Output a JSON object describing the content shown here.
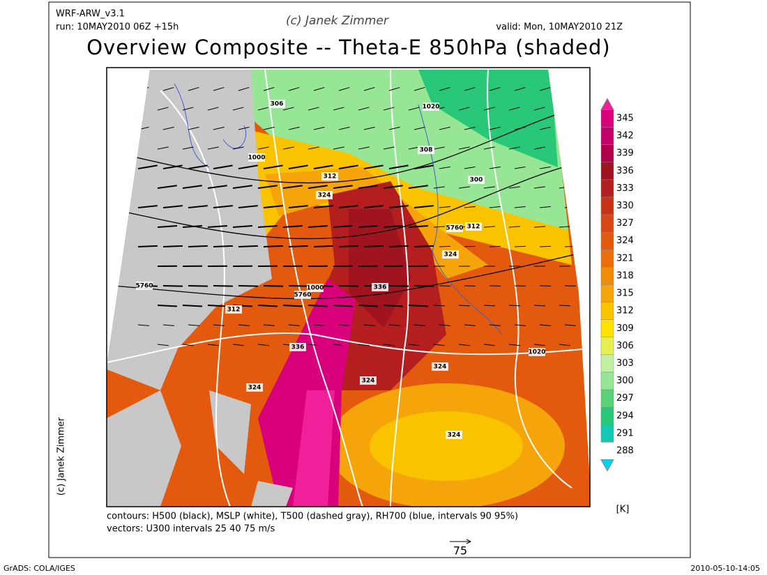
{
  "header": {
    "model": "WRF-ARW_v3.1",
    "run": "run: 10MAY2010 06Z +15h",
    "copyright": "(c) Janek Zimmer",
    "valid": "valid: Mon, 10MAY2010 21Z",
    "title": "Overview Composite -- Theta-E 850hPa (shaded)"
  },
  "colorbar": {
    "labels": [
      345,
      342,
      339,
      336,
      333,
      330,
      327,
      324,
      321,
      318,
      315,
      312,
      309,
      306,
      303,
      300,
      297,
      294,
      291,
      288
    ],
    "colors": [
      "#f0209a",
      "#d9007c",
      "#c4006a",
      "#b0004a",
      "#a01420",
      "#b41e1e",
      "#c83214",
      "#d74614",
      "#e35a0f",
      "#ec6e0a",
      "#f08c0a",
      "#f5a50a",
      "#fac300",
      "#ffe100",
      "#e6f050",
      "#c3f0a0",
      "#96e696",
      "#5ad278",
      "#28c878",
      "#14c8b4",
      "#00d2f0"
    ],
    "unit": "[K]"
  },
  "map_labels": [
    "1020",
    "1020",
    "1000",
    "1000",
    "5760",
    "5760",
    "5760",
    "312",
    "312",
    "312",
    "324",
    "324",
    "324",
    "324",
    "324",
    "324",
    "336",
    "336",
    "306",
    "300",
    "308"
  ],
  "footer": {
    "contours": "contours: H500 (black), MSLP (white), T500 (dashed gray), RH700 (blue, intervals 90 95%)",
    "vectors": "vectors: U300 intervals 25 40 75 m/s",
    "scale": "75",
    "side_credit": "(c) Janek Zimmer",
    "software": "GrADS: COLA/IGES",
    "timestamp": "2010-05-10-14:05"
  }
}
